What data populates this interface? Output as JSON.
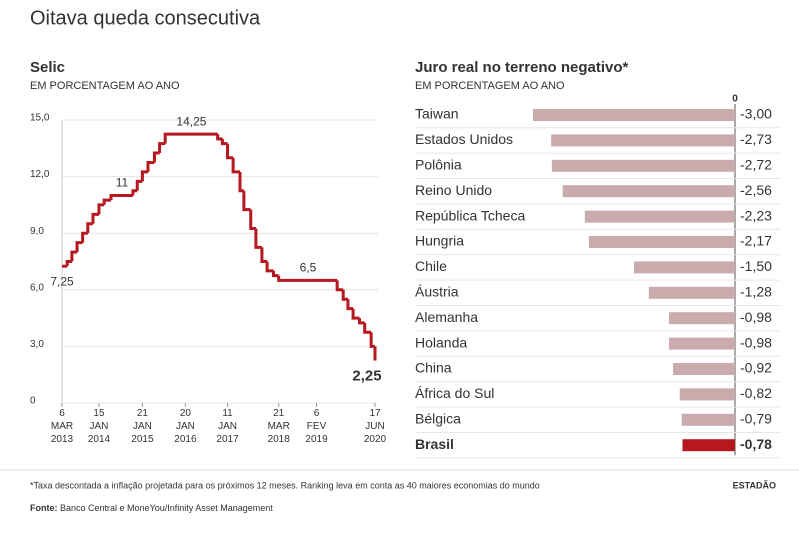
{
  "title": "Oitava queda consecutiva",
  "footnote": "*Taxa descontada a inflação projetada para os próximos 12 meses. Ranking leva em conta as 40 maiores economias do mundo",
  "source_label": "Fonte:",
  "source": "Banco Central e MoneYou/Infinity Asset Management",
  "logo": "ESTADÃO",
  "chart_data": [
    {
      "type": "step",
      "title": "Selic",
      "subtitle": "EM PORCENTAGEM AO ANO",
      "color": "#b5191f",
      "x": [
        2013.18,
        2013.3,
        2013.41,
        2013.53,
        2013.66,
        2013.78,
        2013.9,
        2014.04,
        2014.16,
        2014.32,
        2014.83,
        2014.93,
        2015.05,
        2015.18,
        2015.33,
        2015.45,
        2015.58,
        2016.8,
        2016.91,
        2017.03,
        2017.16,
        2017.32,
        2017.41,
        2017.57,
        2017.69,
        2017.83,
        2017.95,
        2018.1,
        2018.22,
        2019.58,
        2019.72,
        2019.83,
        2019.95,
        2020.1,
        2020.22,
        2020.37,
        2020.46
      ],
      "values": [
        7.25,
        7.5,
        8.0,
        8.5,
        9.0,
        9.5,
        10.0,
        10.5,
        10.75,
        11.0,
        11.25,
        11.75,
        12.25,
        12.75,
        13.25,
        13.75,
        14.25,
        14.0,
        13.75,
        13.0,
        12.25,
        11.25,
        10.25,
        9.25,
        8.25,
        7.5,
        7.0,
        6.75,
        6.5,
        6.0,
        5.5,
        5.0,
        4.5,
        4.25,
        3.75,
        3.0,
        2.25
      ],
      "value_labels": [
        "7,25",
        null,
        null,
        null,
        null,
        null,
        null,
        null,
        null,
        "11",
        null,
        null,
        null,
        null,
        null,
        null,
        "14,25",
        null,
        null,
        null,
        null,
        null,
        null,
        null,
        null,
        null,
        null,
        null,
        "6,5",
        null,
        null,
        null,
        null,
        null,
        null,
        null,
        "2,25"
      ],
      "xlim": [
        2013.18,
        2020.46
      ],
      "xticks": [
        {
          "value": 2013.18,
          "label": "6 MAR 2013"
        },
        {
          "value": 2014.04,
          "label": "15 JAN 2014"
        },
        {
          "value": 2015.05,
          "label": "21 JAN 2015"
        },
        {
          "value": 2016.05,
          "label": "20 JAN 2016"
        },
        {
          "value": 2017.03,
          "label": "11 JAN 2017"
        },
        {
          "value": 2018.22,
          "label": "21 MAR 2018"
        },
        {
          "value": 2019.1,
          "label": "6 FEV 2019"
        },
        {
          "value": 2020.46,
          "label": "17 JUN 2020"
        }
      ],
      "ylim": [
        0,
        15
      ],
      "yticks": [
        0,
        {
          "value": 3,
          "label": "3,0"
        },
        {
          "value": 6,
          "label": "6,0"
        },
        {
          "value": 9,
          "label": "9,0"
        },
        {
          "value": 12,
          "label": "12,0"
        },
        {
          "value": 15,
          "label": "15,0"
        }
      ],
      "grid": true
    },
    {
      "type": "hbar",
      "title": "Juro real no terreno negativo*",
      "subtitle": "EM PORCENTAGEM AO ANO",
      "categories": [
        "Taiwan",
        "Estados Unidos",
        "Polônia",
        "Reino Unido",
        "República Tcheca",
        "Hungria",
        "Chile",
        "Áustria",
        "Alemanha",
        "Holanda",
        "China",
        "África do Sul",
        "Bélgica",
        "Brasil"
      ],
      "values": [
        -3.0,
        -2.73,
        -2.72,
        -2.56,
        -2.23,
        -2.17,
        -1.5,
        -1.28,
        -0.98,
        -0.98,
        -0.92,
        -0.82,
        -0.79,
        -0.78
      ],
      "value_labels": [
        "-3,00",
        "-2,73",
        "-2,72",
        "-2,56",
        "-2,23",
        "-2,17",
        "-1,50",
        "-1,28",
        "-0,98",
        "-0,98",
        "-0,92",
        "-0,82",
        "-0,79",
        "-0,78"
      ],
      "colors": [
        "#c9abad",
        "#c9abad",
        "#c9abad",
        "#c9abad",
        "#c9abad",
        "#c9abad",
        "#c9abad",
        "#c9abad",
        "#c9abad",
        "#c9abad",
        "#c9abad",
        "#c9abad",
        "#c9abad",
        "#b5191f"
      ],
      "xlim": [
        -3,
        0
      ],
      "xticks": [
        0
      ]
    }
  ]
}
